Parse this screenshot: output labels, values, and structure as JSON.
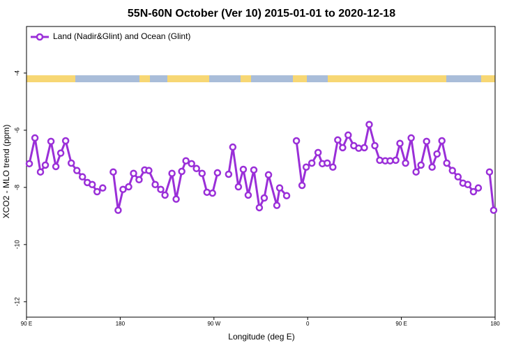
{
  "chart_data": {
    "type": "line",
    "title": "55N-60N October (Ver 10)   2015-01-01 to 2020-12-18",
    "xlabel": "Longitude (deg E)",
    "ylabel": "XCO2 - MLO trend (ppm)",
    "xlim": [
      90,
      540
    ],
    "ylim": [
      -12.54,
      -2.37
    ],
    "xticks": [
      {
        "value": 90,
        "label": "90 E"
      },
      {
        "value": 180,
        "label": "180"
      },
      {
        "value": 270,
        "label": "90 W"
      },
      {
        "value": 360,
        "label": "0"
      },
      {
        "value": 450,
        "label": "90 E"
      },
      {
        "value": 540,
        "label": "180"
      }
    ],
    "yticks": [
      -4,
      -6,
      -8,
      -10,
      -12
    ],
    "legend": "top-left",
    "series": [
      {
        "name": "Land (Nadir&Glint) and Ocean (Glint)",
        "color": "#9a2fd8",
        "x": [
          92.7,
          98.1,
          103.4,
          108.1,
          113.5,
          118.2,
          122.9,
          127.6,
          133.0,
          138.4,
          143.7,
          148.4,
          153.1,
          157.8,
          163.2,
          null,
          173.3,
          178.0,
          182.7,
          188.1,
          192.8,
          198.1,
          203.5,
          207.5,
          213.6,
          218.9,
          223.0,
          229.7,
          233.7,
          239.1,
          243.1,
          248.5,
          253.2,
          258.6,
          263.3,
          268.6,
          273.4,
          null,
          284.1,
          288.1,
          293.5,
          298.2,
          302.9,
          308.3,
          313.6,
          318.3,
          322.4,
          330.4,
          333.1,
          339.8,
          null,
          349.2,
          354.6,
          358.6,
          364.0,
          370.0,
          374.1,
          378.8,
          384.2,
          388.9,
          393.6,
          398.9,
          404.3,
          409.0,
          414.4,
          419.1,
          424.5,
          429.2,
          434.5,
          439.2,
          444.6,
          448.6,
          454.0,
          459.4,
          464.1,
          468.8,
          474.2,
          479.5,
          484.2,
          488.9,
          493.6,
          499.0,
          504.4,
          509.1,
          513.8,
          519.2,
          523.9,
          null,
          534.6,
          538.6
        ],
        "values": [
          -7.17,
          -6.27,
          -7.46,
          -7.22,
          -6.39,
          -7.27,
          -6.8,
          -6.37,
          -7.15,
          -7.41,
          -7.63,
          -7.83,
          -7.9,
          -8.15,
          -8.02,
          null,
          -7.46,
          -8.8,
          -8.07,
          -7.98,
          -7.51,
          -7.73,
          -7.39,
          -7.41,
          -7.9,
          -8.07,
          -8.27,
          -7.51,
          -8.41,
          -7.44,
          -7.07,
          -7.17,
          -7.34,
          -7.51,
          -8.17,
          -8.2,
          -7.49,
          null,
          -7.54,
          -6.59,
          -7.98,
          -7.37,
          -8.27,
          -7.39,
          -8.71,
          -8.37,
          -7.56,
          -8.63,
          -8.02,
          -8.29,
          null,
          -6.37,
          -7.93,
          -7.29,
          -7.15,
          -6.78,
          -7.17,
          -7.15,
          -7.29,
          -6.34,
          -6.61,
          -6.17,
          -6.54,
          -6.63,
          -6.61,
          -5.8,
          -6.54,
          -7.05,
          -7.07,
          -7.07,
          -7.05,
          -6.46,
          -7.15,
          -6.27,
          -7.46,
          -7.22,
          -6.39,
          -7.29,
          -6.83,
          -6.37,
          -7.15,
          -7.41,
          -7.63,
          -7.85,
          -7.9,
          -8.15,
          -8.02,
          null,
          -7.46,
          -8.8
        ]
      }
    ]
  }
}
